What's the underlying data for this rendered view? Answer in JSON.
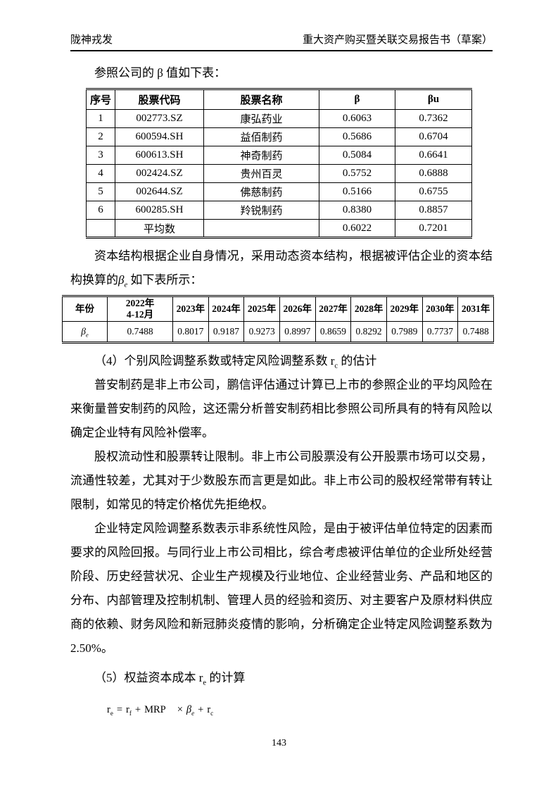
{
  "header": {
    "left": "陇神戎发",
    "right": "重大资产购买暨关联交易报告书（草案）"
  },
  "intro_line": "参照公司的 β 值如下表：",
  "beta_table": {
    "headers": [
      "序号",
      "股票代码",
      "股票名称",
      "β",
      "βu"
    ],
    "rows": [
      [
        "1",
        "002773.SZ",
        "康弘药业",
        "0.6063",
        "0.7362"
      ],
      [
        "2",
        "600594.SH",
        "益佰制药",
        "0.5686",
        "0.6704"
      ],
      [
        "3",
        "600613.SH",
        "神奇制药",
        "0.5084",
        "0.6641"
      ],
      [
        "4",
        "002424.SZ",
        "贵州百灵",
        "0.5752",
        "0.6888"
      ],
      [
        "5",
        "002644.SZ",
        "佛慈制药",
        "0.5166",
        "0.6755"
      ],
      [
        "6",
        "600285.SH",
        "羚锐制药",
        "0.8380",
        "0.8857"
      ],
      [
        "",
        "平均数",
        "",
        "0.6022",
        "0.7201"
      ]
    ]
  },
  "capital_para": {
    "pre": "资本结构根据企业自身情况，采用动态资本结构，根据被评估企业的资本结构换算的",
    "symbol": "β",
    "sub": "e",
    "post": " 如下表所示："
  },
  "year_table": {
    "col0_header": "年份",
    "years": [
      "2022年\n4-12月",
      "2023年",
      "2024年",
      "2025年",
      "2026年",
      "2027年",
      "2028年",
      "2029年",
      "2030年",
      "2031年"
    ],
    "row_label": {
      "symbol": "β",
      "sub": "e"
    },
    "values": [
      "0.7488",
      "0.8017",
      "0.9187",
      "0.9273",
      "0.8997",
      "0.8659",
      "0.8292",
      "0.7989",
      "0.7737",
      "0.7488"
    ]
  },
  "heading4": {
    "pre": "（4）个别风险调整系数或特定风险调整系数 ",
    "symbol": "r",
    "sub": "c",
    "post": " 的估计"
  },
  "para_risk_intro": "普安制药是非上市公司，鹏信评估通过计算已上市的参照企业的平均风险在来衡量普安制药的风险，这还需分析普安制药相比参照公司所具有的特有风险以确定企业特有风险补偿率。",
  "para_liquidity": "股权流动性和股票转让限制。非上市公司股票没有公开股票市场可以交易，流通性较差，尤其对于少数股东而言更是如此。非上市公司的股权经常带有转让限制，如常见的特定价格优先拒绝权。",
  "para_specific": "企业特定风险调整系数表示非系统性风险，是由于被评估单位特定的因素而要求的风险回报。与同行业上市公司相比，综合考虑被评估单位的企业所处经营阶段、历史经营状况、企业生产规模及行业地位、企业经营业务、产品和地区的分布、内部管理及控制机制、管理人员的经验和资历、对主要客户及原材料供应商的依赖、财务风险和新冠肺炎疫情的影响，分析确定企业特定风险调整系数为 2.50%。",
  "heading5": {
    "pre": "（5）权益资本成本 ",
    "symbol": "r",
    "sub": "e",
    "post": " 的计算"
  },
  "formula": {
    "t1": "r",
    "t1_sub": "e",
    "eq": "=",
    "t2": "r",
    "t2_sub": "f",
    "plus1": "+",
    "mrp": "MRP",
    "times": "×",
    "beta": "β",
    "beta_sub": "e",
    "plus2": "+",
    "t3": "r",
    "t3_sub": "c"
  },
  "footer": {
    "page_number": "143"
  }
}
